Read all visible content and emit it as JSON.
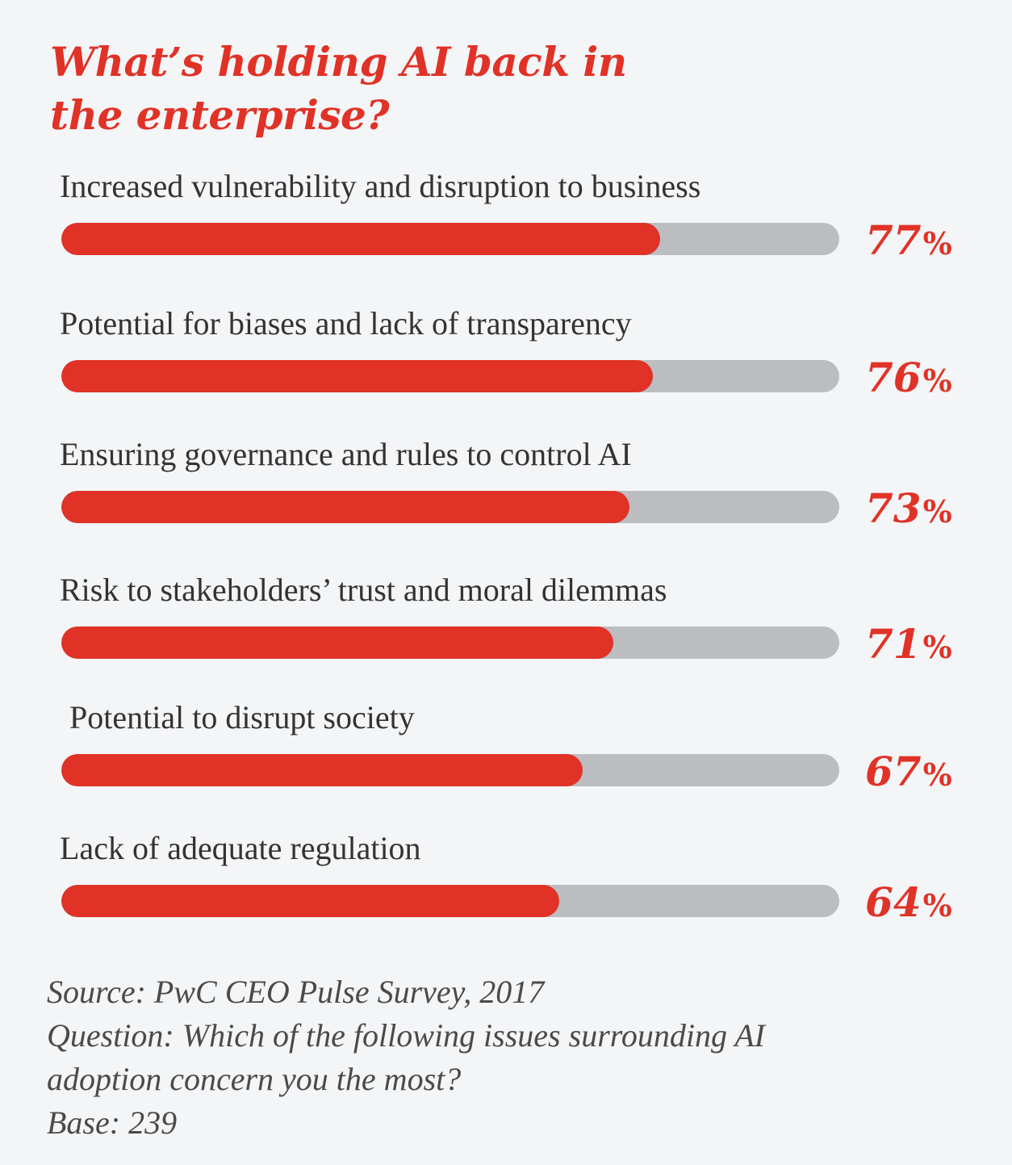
{
  "title_lines": [
    "What’s holding AI back in",
    "the enterprise?"
  ],
  "chart_data": {
    "type": "bar",
    "orientation": "horizontal",
    "categories": [
      "Increased vulnerability and disruption to business",
      "Potential for biases and lack of transparency",
      "Ensuring governance and rules to control AI",
      "Risk to stakeholders’ trust and moral dilemmas",
      "Potential to disrupt society",
      "Lack of adequate regulation"
    ],
    "values": [
      77,
      76,
      73,
      71,
      67,
      64
    ],
    "value_labels": [
      "77",
      "76",
      "73",
      "71",
      "67",
      "64"
    ],
    "unit": "%",
    "xlim": [
      0,
      100
    ],
    "grid": false,
    "legend": "none"
  },
  "colors": {
    "accent": "#e03226",
    "track": "#bcbdc1",
    "background": "#f4f5f7",
    "text": "#333333"
  },
  "footnote": {
    "source": "Source: PwC CEO Pulse Survey, 2017",
    "question_line1": "Question: Which of the following issues surrounding AI",
    "question_line2": "adoption concern you the most?",
    "base": "Base: 239"
  }
}
